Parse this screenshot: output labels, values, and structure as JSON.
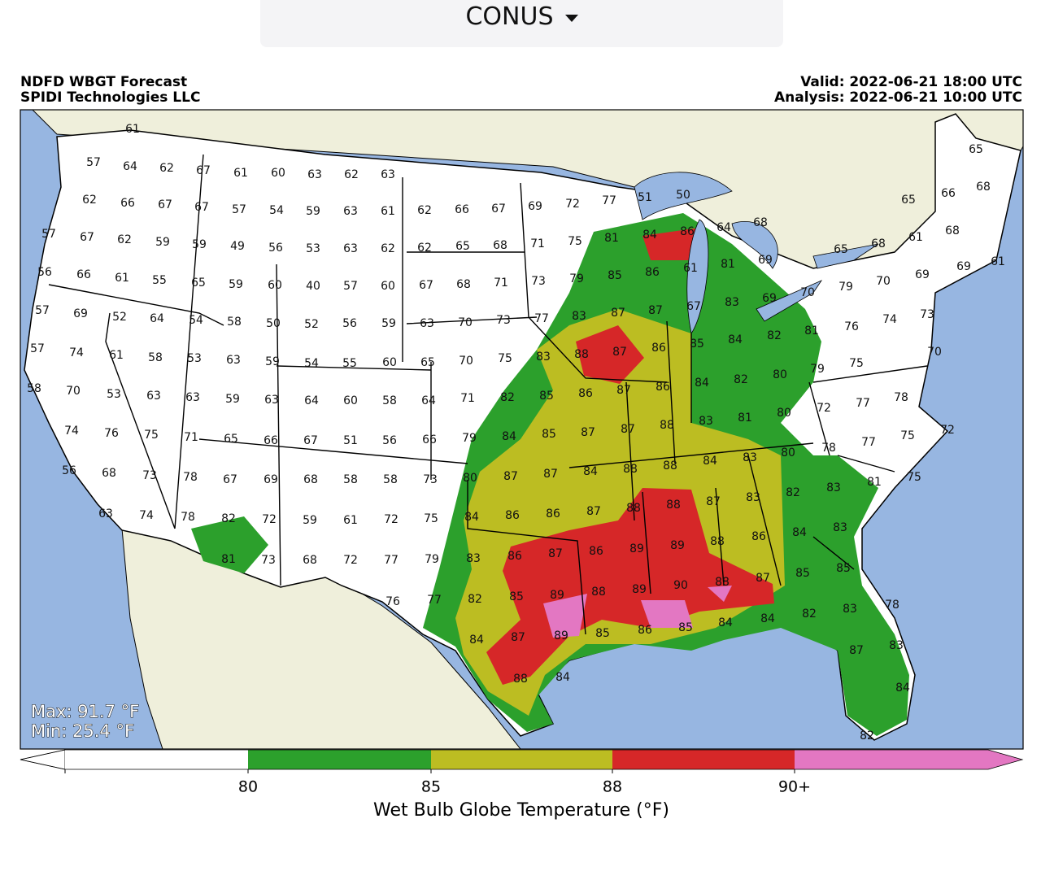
{
  "selector": {
    "label": "CONUS"
  },
  "header": {
    "title": "NDFD WBGT Forecast",
    "source": "SPIDI Technologies LLC",
    "valid": "Valid: 2022-06-21 18:00 UTC",
    "analysis": "Analysis: 2022-06-21 10:00 UTC"
  },
  "map": {
    "stats": {
      "max": "Max: 91.7 °F",
      "min": "Min: 25.4 °F"
    },
    "point_values": [
      61,
      57,
      64,
      62,
      67,
      61,
      60,
      63,
      62,
      63,
      62,
      66,
      67,
      67,
      57,
      54,
      59,
      63,
      61,
      62,
      66,
      67,
      69,
      72,
      77,
      51,
      50,
      57,
      67,
      62,
      59,
      59,
      49,
      56,
      53,
      63,
      62,
      62,
      65,
      68,
      71,
      75,
      81,
      84,
      86,
      64,
      68,
      66,
      68,
      65,
      65,
      56,
      66,
      61,
      55,
      65,
      59,
      60,
      40,
      57,
      60,
      67,
      68,
      71,
      73,
      79,
      85,
      86,
      61,
      81,
      69,
      65,
      68,
      61,
      68,
      61,
      69,
      69,
      70,
      79,
      57,
      69,
      52,
      64,
      54,
      58,
      50,
      52,
      56,
      59,
      63,
      70,
      73,
      77,
      83,
      87,
      87,
      67,
      83,
      69,
      70,
      73,
      74,
      76,
      57,
      74,
      61,
      58,
      53,
      63,
      59,
      54,
      55,
      60,
      65,
      70,
      75,
      83,
      88,
      87,
      86,
      85,
      84,
      82,
      81,
      70,
      75,
      79,
      58,
      70,
      53,
      63,
      63,
      59,
      63,
      64,
      60,
      58,
      64,
      71,
      82,
      85,
      86,
      87,
      86,
      84,
      82,
      80,
      72,
      77,
      78,
      74,
      76,
      75,
      71,
      65,
      66,
      67,
      51,
      56,
      66,
      79,
      84,
      85,
      87,
      87,
      88,
      83,
      81,
      80,
      77,
      75,
      72,
      56,
      68,
      73,
      78,
      67,
      69,
      68,
      58,
      58,
      73,
      80,
      87,
      87,
      84,
      88,
      88,
      84,
      83,
      80,
      78,
      81,
      75,
      63,
      74,
      78,
      82,
      72,
      59,
      61,
      72,
      75,
      84,
      86,
      86,
      87,
      88,
      88,
      87,
      83,
      82,
      83,
      81,
      73,
      68,
      72,
      77,
      79,
      83,
      86,
      87,
      86,
      89,
      89,
      88,
      86,
      84,
      83,
      76,
      77,
      82,
      85,
      89,
      88,
      89,
      90,
      88,
      87,
      85,
      85,
      78,
      83,
      82,
      84,
      84,
      85,
      86,
      85,
      89,
      87,
      84,
      83,
      87,
      88,
      84,
      84,
      82
    ]
  },
  "colorbar": {
    "label": "Wet Bulb Globe Temperature (°F)",
    "ticks": [
      "80",
      "85",
      "88",
      "90+"
    ],
    "colors": [
      "#ffffff",
      "#2ca02c",
      "#bcbd22",
      "#d62728",
      "#e377c2"
    ]
  }
}
